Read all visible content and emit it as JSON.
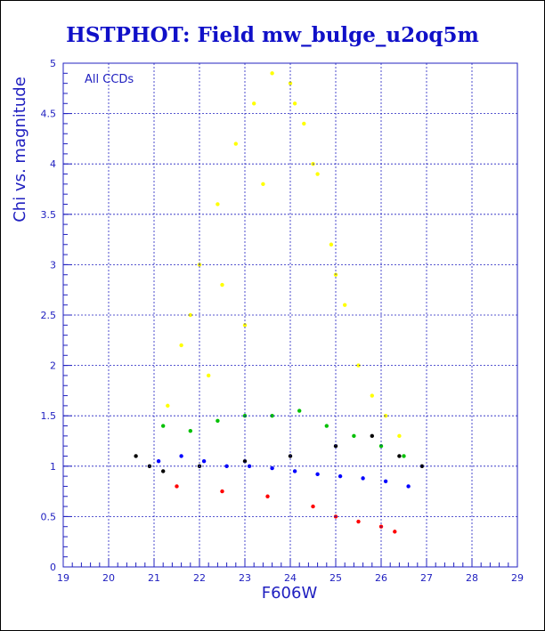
{
  "chart_data": {
    "type": "scatter",
    "title": "HSTPHOT: Field mw_bulge_u2oq5m",
    "xlabel": "F606W",
    "ylabel": "Chi vs. magnitude",
    "annotation": "All CCDs",
    "xlim": [
      19,
      29
    ],
    "ylim": [
      0,
      5
    ],
    "x_ticks": [
      "19",
      "20",
      "21",
      "22",
      "23",
      "24",
      "25",
      "26",
      "27",
      "28",
      "29"
    ],
    "y_ticks": [
      "0",
      "0.5",
      "1",
      "1.5",
      "2",
      "2.5",
      "3",
      "3.5",
      "4",
      "4.5",
      "5"
    ],
    "grid": true,
    "point_colors": [
      "#ffff00",
      "#00c000",
      "#0000ff",
      "#000000",
      "#ff0000"
    ],
    "series": [
      {
        "color": "#ffff00",
        "x": [
          21.3,
          21.6,
          22.0,
          22.4,
          22.8,
          23.2,
          23.6,
          24.0,
          24.3,
          24.6,
          24.9,
          25.2,
          25.5,
          25.8,
          26.1,
          26.4,
          22.5,
          23.4,
          24.1,
          24.5,
          23.0,
          22.2,
          25.0,
          21.8
        ],
        "y": [
          1.6,
          2.2,
          3.0,
          3.6,
          4.2,
          4.6,
          4.9,
          4.8,
          4.4,
          3.9,
          3.2,
          2.6,
          2.0,
          1.7,
          1.5,
          1.3,
          2.8,
          3.8,
          4.6,
          4.0,
          2.4,
          1.9,
          2.9,
          2.5
        ]
      },
      {
        "color": "#00c000",
        "x": [
          21.2,
          21.8,
          22.4,
          23.0,
          23.6,
          24.2,
          24.8,
          25.4,
          26.0,
          26.5
        ],
        "y": [
          1.4,
          1.35,
          1.45,
          1.5,
          1.5,
          1.55,
          1.4,
          1.3,
          1.2,
          1.1
        ]
      },
      {
        "color": "#0000ff",
        "x": [
          21.1,
          21.6,
          22.1,
          22.6,
          23.1,
          23.6,
          24.1,
          24.6,
          25.1,
          25.6,
          26.1,
          26.6
        ],
        "y": [
          1.05,
          1.1,
          1.05,
          1.0,
          1.0,
          0.98,
          0.95,
          0.92,
          0.9,
          0.88,
          0.85,
          0.8
        ]
      },
      {
        "color": "#000000",
        "x": [
          20.6,
          20.9,
          21.2,
          22.0,
          23.0,
          24.0,
          25.0,
          25.8,
          26.4,
          26.9
        ],
        "y": [
          1.1,
          1.0,
          0.95,
          1.0,
          1.05,
          1.1,
          1.2,
          1.3,
          1.1,
          1.0
        ]
      },
      {
        "color": "#ff0000",
        "x": [
          21.5,
          22.5,
          23.5,
          24.5,
          25.0,
          25.5,
          26.0,
          26.3
        ],
        "y": [
          0.8,
          0.75,
          0.7,
          0.6,
          0.5,
          0.45,
          0.4,
          0.35
        ]
      }
    ]
  }
}
